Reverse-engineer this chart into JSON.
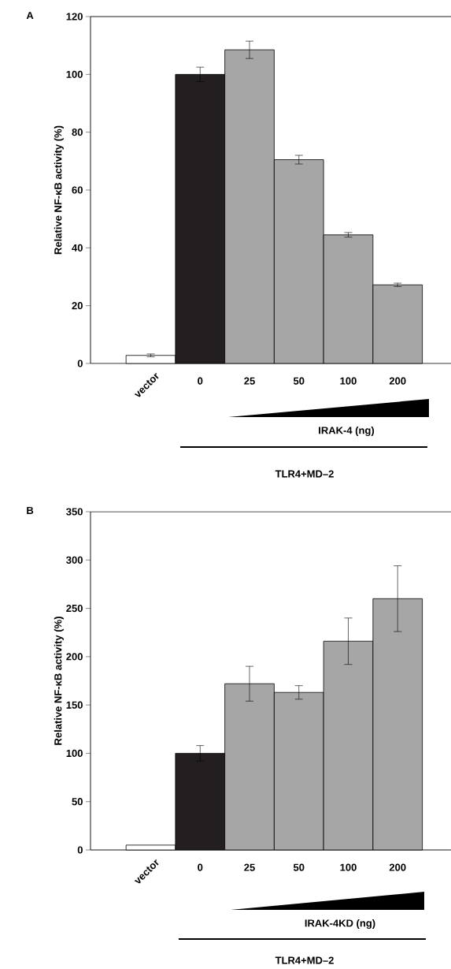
{
  "chart_data": [
    {
      "type": "bar",
      "title": "A",
      "ylabel": "Relative NF-κB activity (%)",
      "categories": [
        "vector",
        "0",
        "25",
        "50",
        "100",
        "200"
      ],
      "values": [
        2.8,
        100,
        108.5,
        70.5,
        44.5,
        27.2
      ],
      "errors": [
        0.5,
        2.5,
        3,
        1.5,
        0.8,
        0.6
      ],
      "colors": [
        "#ffffff",
        "#231f20",
        "#a6a6a6",
        "#a6a6a6",
        "#a6a6a6",
        "#a6a6a6"
      ],
      "ylim": [
        0,
        120
      ],
      "yticks": [
        0,
        20,
        40,
        60,
        80,
        100,
        120
      ],
      "annotations": [
        "IRAK-4 (ng)",
        "TLR4+MD–2"
      ]
    },
    {
      "type": "bar",
      "title": "B",
      "ylabel": "Relative NF-κB activity (%)",
      "categories": [
        "vector",
        "0",
        "25",
        "50",
        "100",
        "200"
      ],
      "values": [
        5,
        100,
        172,
        163,
        216,
        260
      ],
      "errors": [
        null,
        8,
        18,
        7,
        24,
        34
      ],
      "colors": [
        "#ffffff",
        "#231f20",
        "#a6a6a6",
        "#a6a6a6",
        "#a6a6a6",
        "#a6a6a6"
      ],
      "ylim": [
        0,
        350
      ],
      "yticks": [
        0,
        50,
        100,
        150,
        200,
        250,
        300,
        350
      ],
      "annotations": [
        "IRAK-4KD (ng)",
        "TLR4+MD–2"
      ]
    }
  ]
}
